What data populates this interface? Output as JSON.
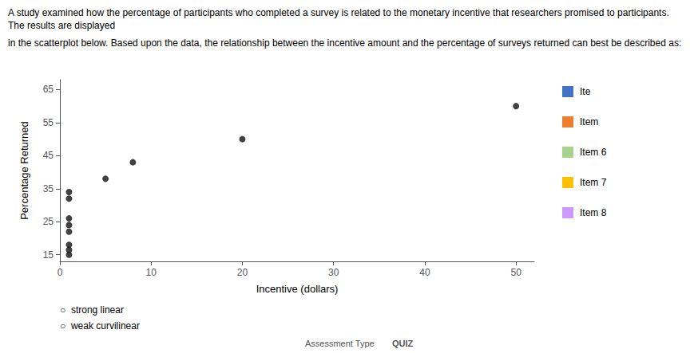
{
  "chart_data": {
    "type": "scatter",
    "title": "A study examined how the percentage of participants who completed a survey is related to the monetary incentive that researchers promised to participants. The results are displayed",
    "subtitle": "in the scatterplot below. Based upon the data, the relationship between the incentive amount and the percentage of surveys returned can best be described as:",
    "x": [
      1,
      1,
      1,
      1,
      1,
      1,
      1,
      1,
      5,
      8,
      20,
      50
    ],
    "values": [
      15,
      16.5,
      18,
      22,
      24,
      26,
      32,
      34,
      38,
      43,
      50,
      60
    ],
    "color": "#111111",
    "marker": "circle",
    "xlabel": "Incentive (dollars)",
    "ylabel": "Percentage Returned",
    "xlim": [
      0,
      52
    ],
    "ylim": [
      13,
      68
    ],
    "xticks": [
      0,
      10,
      20,
      30,
      40,
      50
    ],
    "yticks": [
      15,
      25,
      35,
      45,
      55,
      65
    ],
    "grid": false,
    "annotations": [
      {
        "text": "Ite",
        "color": "#4472c4"
      },
      {
        "text": "Item",
        "color": "#ed7d31"
      },
      {
        "text": "Item 6",
        "color": "#a9d18e"
      },
      {
        "text": "Item 7",
        "color": "#ffc000"
      },
      {
        "text": "Item 8",
        "color": "#cc99ff"
      },
      {
        "text": "○  strong linear"
      },
      {
        "text": "○  weak curvilinear"
      },
      {
        "text": "Assessment Type"
      },
      {
        "text": "QUIZ"
      }
    ]
  }
}
